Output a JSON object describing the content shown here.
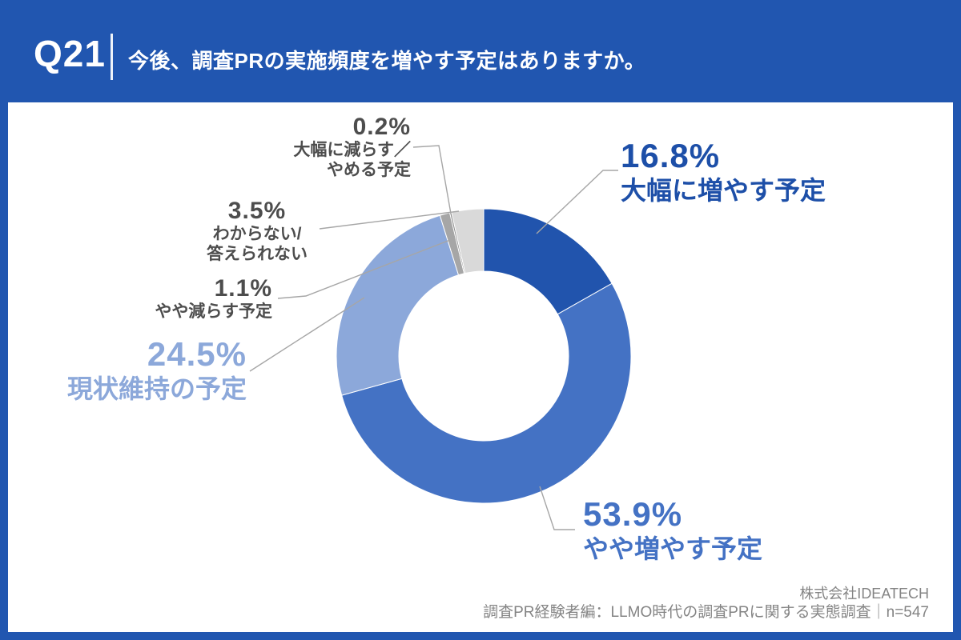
{
  "header": {
    "question_number": "Q21",
    "title": "今後、調査PRの実施頻度を増やす予定はありますか。"
  },
  "chart_data": {
    "type": "pie",
    "donut": true,
    "direction": "clockwise",
    "start_angle_deg": 0,
    "categories": [
      "大幅に増やす予定",
      "やや増やす予定",
      "現状維持の予定",
      "やや減らす予定",
      "大幅に減らす／やめる予定",
      "わからない/答えられない"
    ],
    "values": [
      16.8,
      53.9,
      24.5,
      1.1,
      0.2,
      3.5
    ],
    "colors": [
      "#2154ad",
      "#4472c4",
      "#8ca8da",
      "#a6a6a6",
      "#8c8c8c",
      "#d9d9d9"
    ],
    "unit": "%",
    "center": [
      604,
      445
    ],
    "outer_radius": 184,
    "inner_radius": 106,
    "legend": "none"
  },
  "callouts": {
    "increase_much": {
      "pct": "16.8%",
      "label": "大幅に増やす予定"
    },
    "increase_some": {
      "pct": "53.9%",
      "label": "やや増やす予定"
    },
    "maintain": {
      "pct": "24.5%",
      "label": "現状維持の予定"
    },
    "decrease_some": {
      "pct": "1.1%",
      "label": "やや減らす予定"
    },
    "decrease_much": {
      "pct": "0.2%",
      "label1": "大幅に減らす／",
      "label2": "やめる予定"
    },
    "dontknow": {
      "pct": "3.5%",
      "label1": "わからない/",
      "label2": "答えられない"
    }
  },
  "footer": {
    "company": "株式会社IDEATECH",
    "source": "調査PR経験者編：LLMO時代の調査PRに関する実態調査｜n=547"
  },
  "colors": {
    "frame_blue": "#2156b0",
    "slice_dark_blue": "#2154ad",
    "slice_medium_blue": "#4472c4",
    "slice_light_blue": "#8ca8da",
    "slice_gray": "#a6a6a6",
    "slice_dark_gray": "#8c8c8c",
    "slice_light_gray": "#d9d9d9",
    "label_dark_blue": "#1d4fa8",
    "label_medium_blue": "#4472c4",
    "label_light_blue": "#8ca8da",
    "label_gray": "#4d4d4d",
    "footer_gray": "#848484",
    "leader_line": "#a6a6a6"
  }
}
